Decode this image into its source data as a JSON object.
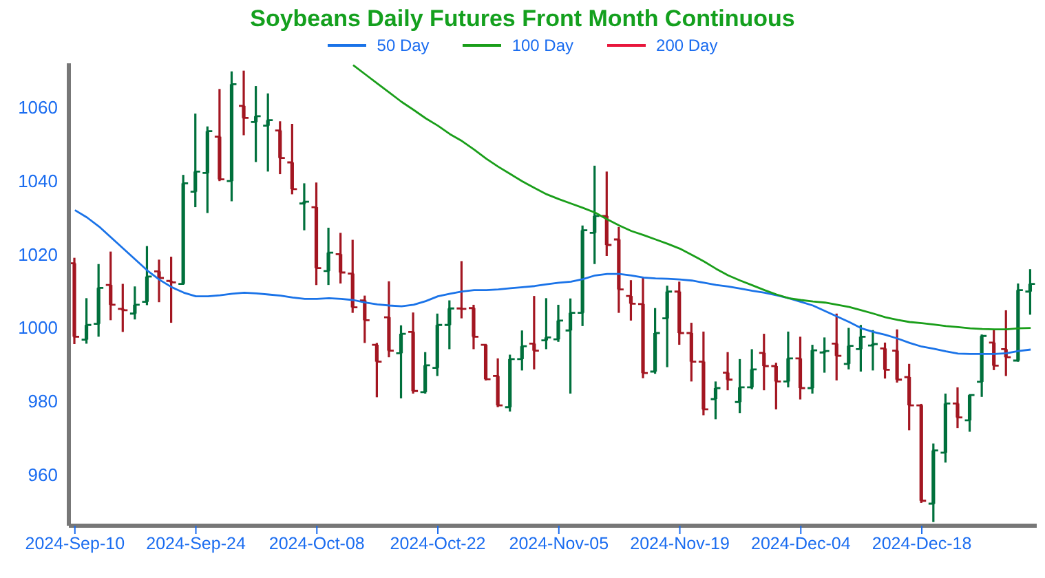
{
  "chart_data": {
    "type": "candlestick",
    "title": "Soybeans Daily Futures Front Month Continuous",
    "categories": [
      "2024-Sep-10",
      null,
      null,
      null,
      null,
      null,
      null,
      null,
      null,
      null,
      "2024-Sep-24",
      null,
      null,
      null,
      null,
      null,
      null,
      null,
      null,
      null,
      "2024-Oct-08",
      null,
      null,
      null,
      null,
      null,
      null,
      null,
      null,
      null,
      "2024-Oct-22",
      null,
      null,
      null,
      null,
      null,
      null,
      null,
      null,
      null,
      "2024-Nov-05",
      null,
      null,
      null,
      null,
      null,
      null,
      null,
      null,
      null,
      "2024-Nov-19",
      null,
      null,
      null,
      null,
      null,
      null,
      null,
      null,
      null,
      "2024-Dec-04",
      null,
      null,
      null,
      null,
      null,
      null,
      null,
      null,
      null,
      "2024-Dec-18",
      null,
      null,
      null,
      null,
      null,
      null,
      null,
      null,
      null
    ],
    "ohlc": [
      [
        1017.5,
        1019,
        995.5,
        997.5
      ],
      [
        996.7,
        1008,
        995.6,
        1000.7
      ],
      [
        1001,
        1017.3,
        997.5,
        1010.8
      ],
      [
        1011.6,
        1020.7,
        1002,
        1006.2
      ],
      [
        1005.1,
        1011.9,
        998.8,
        1004.7
      ],
      [
        1003.8,
        1011.2,
        1002.2,
        1006.2
      ],
      [
        1007,
        1022.2,
        1006.1,
        1013.9
      ],
      [
        1015.3,
        1018.5,
        1006.9,
        1013.5
      ],
      [
        1012.7,
        1019.3,
        1001.3,
        1012.3
      ],
      [
        1011.9,
        1041.6,
        1011.9,
        1039.3
      ],
      [
        1037,
        1058.3,
        1032.8,
        1042.5
      ],
      [
        1042.1,
        1054.8,
        1031.2,
        1053.5
      ],
      [
        1052,
        1065,
        1039.9,
        1040.4
      ],
      [
        1039.9,
        1069.8,
        1034.4,
        1066.3
      ],
      [
        1060.4,
        1070,
        1052.4,
        1057.1
      ],
      [
        1056,
        1065.8,
        1045.1,
        1057.6
      ],
      [
        1055,
        1063.8,
        1042.5,
        1056.5
      ],
      [
        1053.7,
        1056.2,
        1041.8,
        1046.2
      ],
      [
        1045,
        1055.5,
        1036.3,
        1037.7
      ],
      [
        1033.8,
        1039.3,
        1026.5,
        1034.3
      ],
      [
        1032.8,
        1039.5,
        1011.6,
        1016.2
      ],
      [
        1015.4,
        1027.2,
        1011.6,
        1020.4
      ],
      [
        1020,
        1025.8,
        1012,
        1015
      ],
      [
        1014.7,
        1023.9,
        1004,
        1005.5
      ],
      [
        1007.4,
        1008.7,
        995.8,
        1002
      ],
      [
        995.3,
        995.8,
        981,
        990.7
      ],
      [
        1002.8,
        1012.6,
        991.9,
        993.7
      ],
      [
        993,
        1000.6,
        980.7,
        998.3
      ],
      [
        998.8,
        1004.1,
        982,
        982.7
      ],
      [
        982.4,
        993.3,
        982,
        989.7
      ],
      [
        989,
        1003.8,
        986.8,
        1000.7
      ],
      [
        1000.7,
        1007.4,
        994.1,
        1005.2
      ],
      [
        1005.2,
        1018.1,
        1002.5,
        1005.1
      ],
      [
        1005.3,
        1006.2,
        994.1,
        997.5
      ],
      [
        995.3,
        995.5,
        985.6,
        985.9
      ],
      [
        986.8,
        991.6,
        978.3,
        978.8
      ],
      [
        978.3,
        992.6,
        977.1,
        991.4
      ],
      [
        991.4,
        999.2,
        988.3,
        994.9
      ],
      [
        995.6,
        1008.6,
        988.6,
        993.7
      ],
      [
        996.5,
        1008,
        994.1,
        997.3
      ],
      [
        996.8,
        1006.2,
        996.1,
        1001.9
      ],
      [
        999.2,
        1007.9,
        982,
        1004
      ],
      [
        1004,
        1027.8,
        1000.4,
        1026.5
      ],
      [
        1025.8,
        1044.1,
        1017.3,
        1030.4
      ],
      [
        1030.4,
        1042.5,
        1019.5,
        1022.5
      ],
      [
        1024,
        1027.4,
        1004,
        1010.4
      ],
      [
        1008.6,
        1012.9,
        1001.9,
        1006.5
      ],
      [
        1006.4,
        1013.5,
        986.2,
        987.6
      ],
      [
        988,
        1005.3,
        987.4,
        998.5
      ],
      [
        1002.5,
        1011.4,
        989.2,
        1009.8
      ],
      [
        1009.8,
        1012.5,
        995.3,
        998.5
      ],
      [
        998.5,
        1001.3,
        985.3,
        990.7
      ],
      [
        990.7,
        998.9,
        976.1,
        977.7
      ],
      [
        980.5,
        985.3,
        975,
        983.5
      ],
      [
        987.7,
        993.3,
        982.9,
        985.8
      ],
      [
        979.7,
        991.4,
        976.7,
        983.7
      ],
      [
        983.7,
        994.1,
        983.2,
        988.6
      ],
      [
        993.1,
        998.3,
        982.9,
        989.5
      ],
      [
        989.5,
        990.4,
        977.7,
        985.3
      ],
      [
        985.3,
        998.9,
        983.7,
        991.6
      ],
      [
        991.6,
        997.5,
        980.4,
        983.5
      ],
      [
        983.5,
        995.3,
        982,
        993.8
      ],
      [
        993.2,
        997.3,
        987.7,
        993.6
      ],
      [
        995.6,
        1003.8,
        985.6,
        992.3
      ],
      [
        990.1,
        999.9,
        988.6,
        995
      ],
      [
        994.1,
        1000.7,
        988,
        997.5
      ],
      [
        995.1,
        999.3,
        988.3,
        995.5
      ],
      [
        994.3,
        995.9,
        986.1,
        988.5
      ],
      [
        993.7,
        999.5,
        985,
        985.8
      ],
      [
        986.5,
        990.1,
        972,
        978.8
      ],
      [
        978.8,
        979.2,
        952.2,
        952.8
      ],
      [
        952,
        968.4,
        947,
        966.5
      ],
      [
        965.9,
        982,
        963.2,
        979.3
      ],
      [
        979.3,
        983.7,
        972.6,
        975.5
      ],
      [
        974.7,
        981.6,
        971.6,
        981.6
      ],
      [
        985.2,
        998.1,
        981.1,
        997.7
      ],
      [
        995.9,
        999.3,
        988.4,
        989.6
      ],
      [
        994.1,
        1004.7,
        986.8,
        991.9
      ],
      [
        991,
        1012,
        990.7,
        1010.2
      ],
      [
        1009.8,
        1015.9,
        1003.5,
        1011.9
      ]
    ],
    "colors": [
      "#a31621",
      "#00703c",
      "#00703c",
      "#a31621",
      "#a31621",
      "#00703c",
      "#00703c",
      "#a31621",
      "#a31621",
      "#00703c",
      "#00703c",
      "#00703c",
      "#a31621",
      "#00703c",
      "#a31621",
      "#00703c",
      "#00703c",
      "#a31621",
      "#a31621",
      "#00703c",
      "#a31621",
      "#00703c",
      "#a31621",
      "#a31621",
      "#a31621",
      "#a31621",
      "#a31621",
      "#00703c",
      "#a31621",
      "#00703c",
      "#00703c",
      "#00703c",
      "#a31621",
      "#a31621",
      "#a31621",
      "#a31621",
      "#00703c",
      "#00703c",
      "#a31621",
      "#00703c",
      "#00703c",
      "#00703c",
      "#00703c",
      "#00703c",
      "#a31621",
      "#a31621",
      "#a31621",
      "#a31621",
      "#00703c",
      "#00703c",
      "#a31621",
      "#a31621",
      "#a31621",
      "#00703c",
      "#a31621",
      "#00703c",
      "#00703c",
      "#a31621",
      "#a31621",
      "#00703c",
      "#a31621",
      "#00703c",
      "#00703c",
      "#a31621",
      "#00703c",
      "#00703c",
      "#00703c",
      "#a31621",
      "#a31621",
      "#a31621",
      "#a31621",
      "#00703c",
      "#00703c",
      "#a31621",
      "#00703c",
      "#00703c",
      "#a31621",
      "#a31621",
      "#00703c",
      "#00703c"
    ],
    "series": [
      {
        "name": "50 Day",
        "type": "line",
        "color": "#1a73e8",
        "values": [
          1032,
          1030,
          1027.5,
          1024.5,
          1021.5,
          1018.5,
          1015.5,
          1013,
          1011,
          1009.5,
          1008.5,
          1008.5,
          1008.8,
          1009.2,
          1009.5,
          1009.3,
          1009,
          1008.7,
          1008.2,
          1007.8,
          1007.8,
          1008,
          1007.8,
          1007.5,
          1006.8,
          1006.3,
          1006,
          1005.8,
          1006.2,
          1007.2,
          1008.5,
          1009.2,
          1009.8,
          1010.2,
          1010.2,
          1010.4,
          1010.7,
          1011,
          1011.3,
          1011.8,
          1012.2,
          1012.5,
          1013.2,
          1014.2,
          1014.6,
          1014.6,
          1014.2,
          1013.6,
          1013.4,
          1013.3,
          1013.1,
          1012.8,
          1012.2,
          1011.6,
          1011.2,
          1010.6,
          1010,
          1009.5,
          1008.8,
          1008,
          1007,
          1006,
          1004.5,
          1003,
          1001.5,
          999.8,
          998.8,
          998,
          997,
          995.8,
          994.8,
          994.2,
          993.5,
          992.9,
          992.8,
          992.8,
          992.8,
          993,
          993.6,
          994
        ]
      },
      {
        "name": "100 Day",
        "type": "line",
        "color": "#1a9e1a",
        "values": [
          null,
          null,
          null,
          null,
          null,
          null,
          null,
          null,
          null,
          null,
          null,
          null,
          null,
          null,
          null,
          null,
          null,
          null,
          null,
          null,
          null,
          null,
          null,
          1071.5,
          1069,
          1066.5,
          1064,
          1061.5,
          1059.3,
          1057,
          1055,
          1052.7,
          1050.8,
          1048.5,
          1046,
          1043.8,
          1041.8,
          1039.8,
          1038,
          1036.3,
          1035,
          1033.8,
          1032.6,
          1031.3,
          1029.5,
          1027.8,
          1026.3,
          1025.2,
          1024,
          1022.8,
          1021.5,
          1019.8,
          1018,
          1016,
          1014.2,
          1012.8,
          1011.5,
          1010.2,
          1009,
          1008,
          1007.5,
          1007.1,
          1006.8,
          1006.2,
          1005.6,
          1004.7,
          1003.8,
          1002.8,
          1002.1,
          1001.5,
          1001.2,
          1000.8,
          1000.4,
          1000.1,
          999.8,
          999.6,
          999.5,
          999.5,
          999.8,
          999.9
        ]
      },
      {
        "name": "200 Day",
        "type": "line",
        "color": "#e8173c",
        "values": [
          null,
          null,
          null,
          null,
          null,
          null,
          null,
          null,
          null,
          null,
          null,
          null,
          null,
          null,
          null,
          null,
          null,
          null,
          null,
          null,
          null,
          null,
          null,
          null,
          null,
          null,
          null,
          null,
          null,
          null,
          null,
          null,
          null,
          null,
          null,
          null,
          null,
          null,
          null,
          null,
          null,
          null,
          null,
          null,
          null,
          null,
          null,
          null,
          null,
          null,
          null,
          null,
          null,
          null,
          null,
          null,
          null,
          null,
          null,
          null,
          null,
          null,
          null,
          null,
          null,
          null,
          null,
          null,
          null,
          null,
          null,
          null,
          null,
          null,
          null,
          null,
          null,
          null,
          null,
          null
        ]
      }
    ],
    "ylim": [
      946,
      1072
    ],
    "yticks": [
      960,
      980,
      1000,
      1020,
      1040,
      1060
    ],
    "grid": false,
    "legend": "top",
    "marker": "none",
    "line_style": "solid"
  }
}
